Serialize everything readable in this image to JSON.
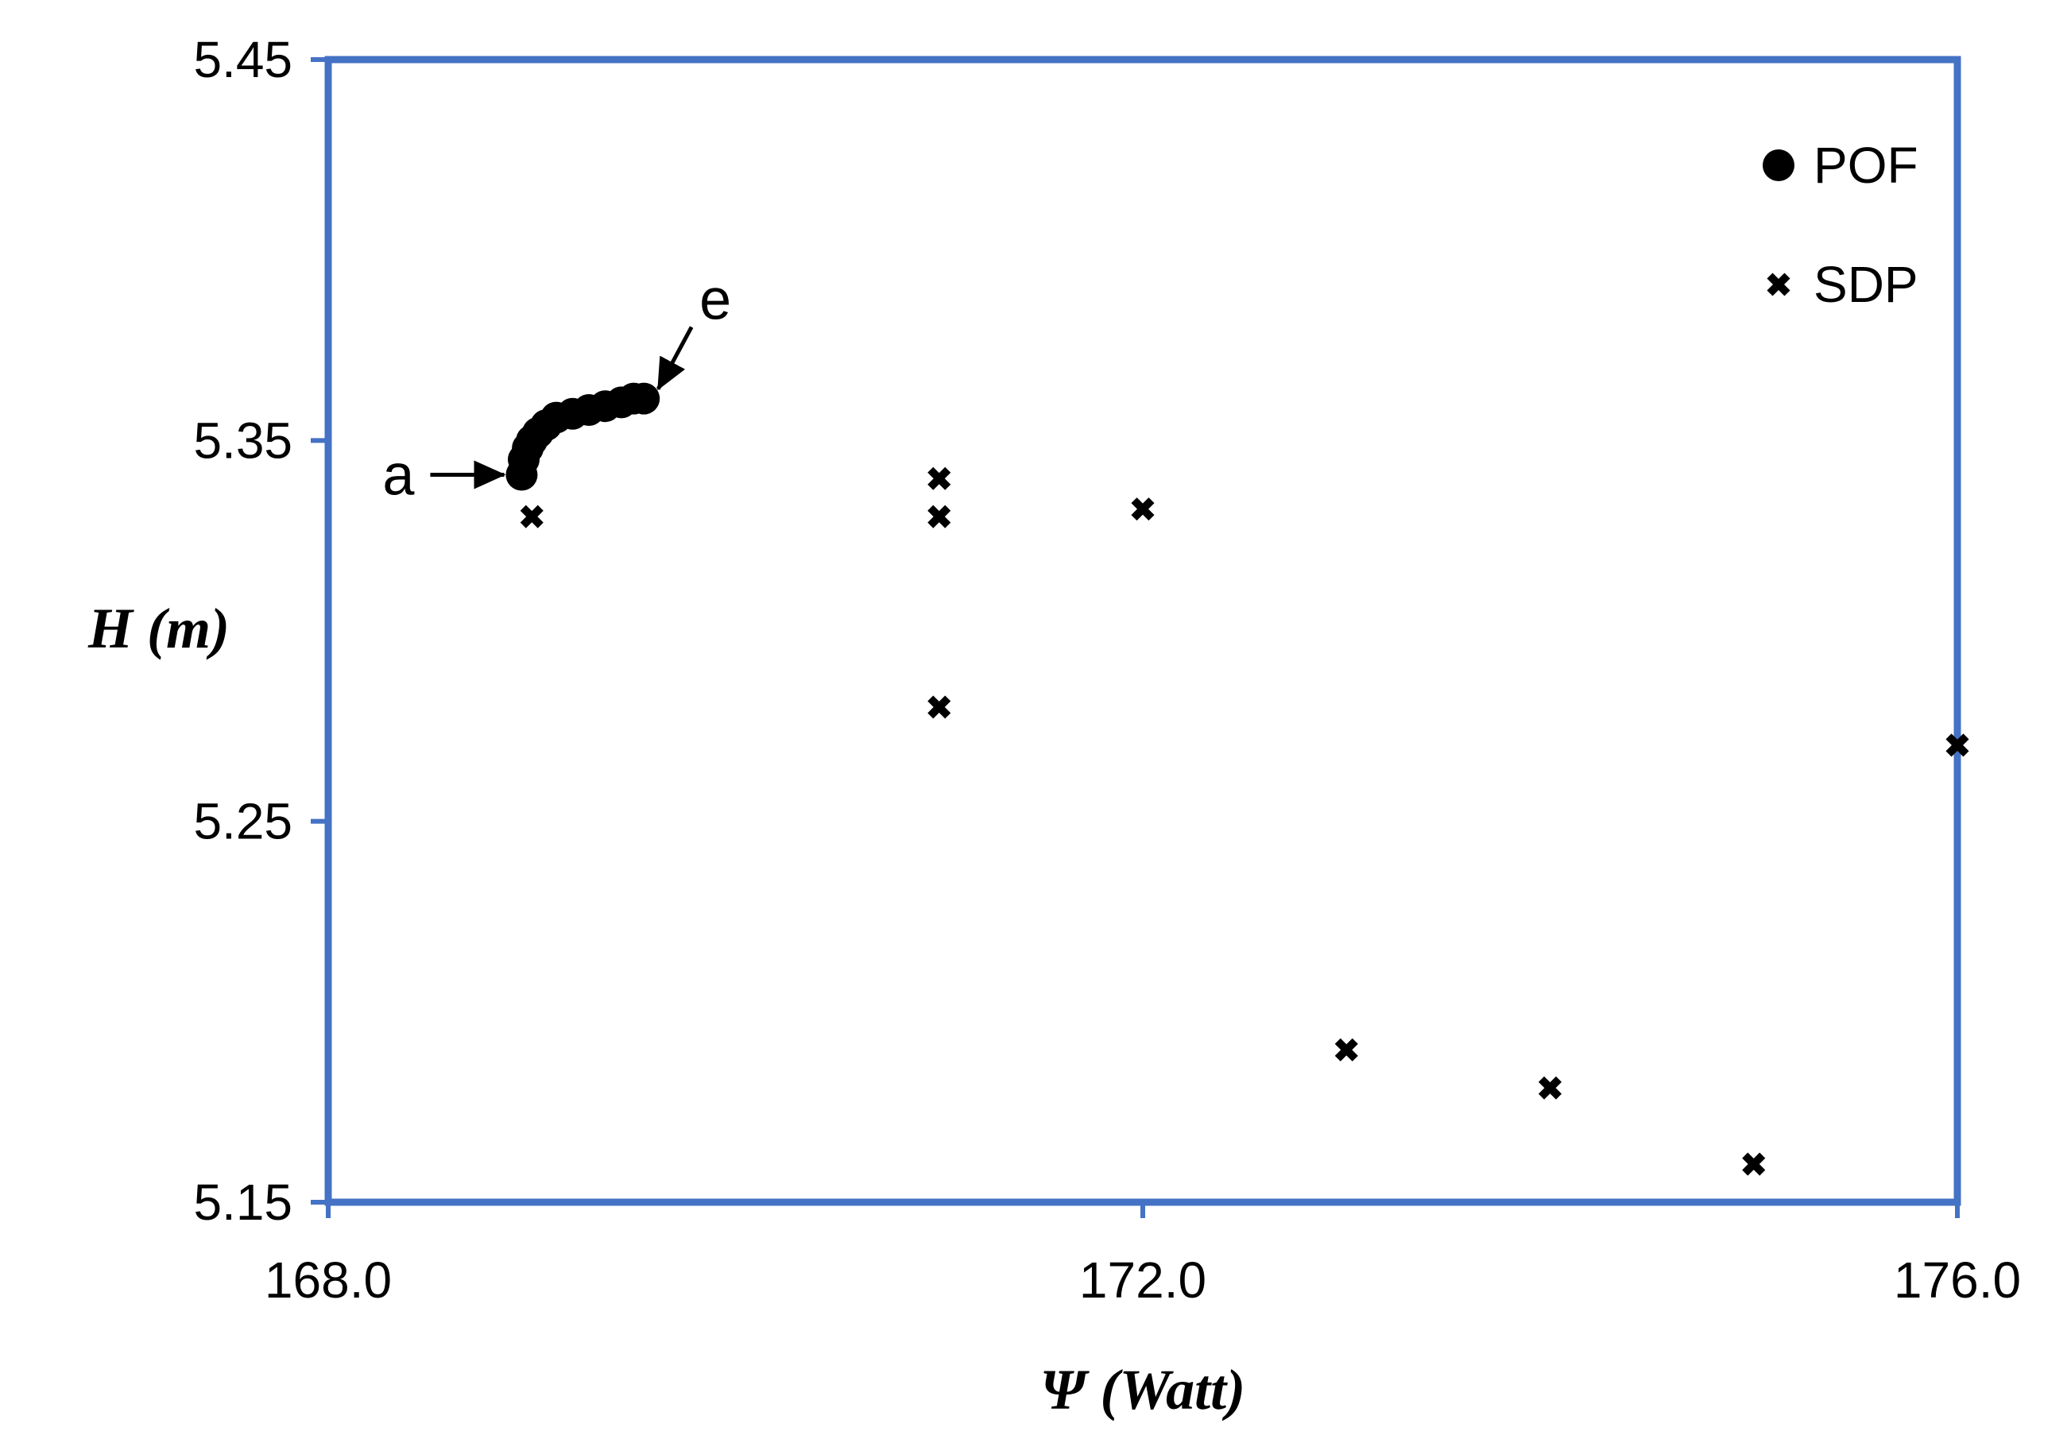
{
  "chart_data": {
    "type": "scatter",
    "title": "",
    "xlabel": "Ψ (Watt)",
    "ylabel": "H (m)",
    "xlim": [
      168.0,
      176.0
    ],
    "ylim": [
      5.15,
      5.45
    ],
    "xticks": [
      "168.0",
      "172.0",
      "176.0"
    ],
    "yticks": [
      "5.15",
      "5.25",
      "5.35",
      "5.45"
    ],
    "grid": false,
    "legend_position": "top-right",
    "axis_color": "#4472c4",
    "marker_color": "#000000",
    "series": [
      {
        "name": "POF",
        "marker": "circle",
        "points": [
          {
            "x": 168.95,
            "y": 5.341
          },
          {
            "x": 168.96,
            "y": 5.345
          },
          {
            "x": 168.98,
            "y": 5.348
          },
          {
            "x": 169.0,
            "y": 5.35
          },
          {
            "x": 169.03,
            "y": 5.352
          },
          {
            "x": 169.07,
            "y": 5.354
          },
          {
            "x": 169.12,
            "y": 5.356
          },
          {
            "x": 169.2,
            "y": 5.357
          },
          {
            "x": 169.28,
            "y": 5.358
          },
          {
            "x": 169.36,
            "y": 5.359
          },
          {
            "x": 169.44,
            "y": 5.36
          },
          {
            "x": 169.5,
            "y": 5.361
          },
          {
            "x": 169.55,
            "y": 5.361
          }
        ]
      },
      {
        "name": "SDP",
        "marker": "x",
        "points": [
          {
            "x": 169.0,
            "y": 5.33
          },
          {
            "x": 171.0,
            "y": 5.34
          },
          {
            "x": 171.0,
            "y": 5.33
          },
          {
            "x": 171.0,
            "y": 5.28
          },
          {
            "x": 172.0,
            "y": 5.332
          },
          {
            "x": 173.0,
            "y": 5.19
          },
          {
            "x": 174.0,
            "y": 5.18
          },
          {
            "x": 175.0,
            "y": 5.16
          },
          {
            "x": 176.0,
            "y": 5.27
          }
        ]
      }
    ],
    "annotations": [
      {
        "label": "a",
        "x": 168.95,
        "y": 5.341
      },
      {
        "label": "e",
        "x": 169.55,
        "y": 5.361
      }
    ]
  }
}
